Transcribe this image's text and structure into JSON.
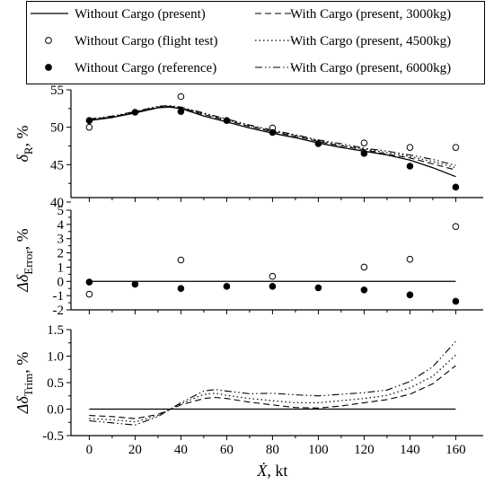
{
  "legend": {
    "placement": "top",
    "entries": [
      {
        "key": "without_cargo_present",
        "label": "Without Cargo (present)",
        "style": "solid-line"
      },
      {
        "key": "with_cargo_3000",
        "label": "With Cargo (present, 3000kg)",
        "style": "dashed-line"
      },
      {
        "key": "without_cargo_flight_test",
        "label": "Without Cargo (flight test)",
        "style": "open-circle"
      },
      {
        "key": "with_cargo_4500",
        "label": "With Cargo (present, 4500kg)",
        "style": "dotted-line"
      },
      {
        "key": "without_cargo_reference",
        "label": "Without Cargo (reference)",
        "style": "filled-circle"
      },
      {
        "key": "with_cargo_6000",
        "label": "With Cargo (present, 6000kg)",
        "style": "dashdot-line"
      }
    ]
  },
  "xaxis": {
    "label_symbol": "Ẋ",
    "label_unit": ", kt",
    "ticks": [
      "0",
      "20",
      "40",
      "60",
      "80",
      "100",
      "120",
      "140",
      "160"
    ],
    "range": [
      -8,
      172
    ]
  },
  "chart_data": [
    {
      "type": "line",
      "panel": "top",
      "ylabel_symbol": "δ",
      "ylabel_sub": "R",
      "ylabel_unit": ", %",
      "ylim": [
        40.6,
        55
      ],
      "yticks": [
        "40",
        "45",
        "50",
        "55"
      ],
      "series": [
        {
          "name": "Without Cargo (present)",
          "x": [
            0,
            10,
            20,
            30,
            35,
            40,
            50,
            60,
            70,
            80,
            90,
            100,
            110,
            120,
            130,
            140,
            150,
            160
          ],
          "y": [
            50.9,
            51.3,
            51.9,
            52.6,
            52.7,
            52.5,
            51.5,
            50.7,
            49.9,
            49.2,
            48.6,
            47.9,
            47.3,
            46.8,
            46.3,
            45.6,
            44.6,
            43.4
          ]
        },
        {
          "name": "With Cargo (present, 3000kg)",
          "x": [
            0,
            10,
            20,
            30,
            35,
            40,
            50,
            60,
            70,
            80,
            90,
            100,
            110,
            120,
            130,
            140,
            150,
            160
          ],
          "y": [
            51.0,
            51.4,
            52.0,
            52.7,
            52.8,
            52.6,
            51.7,
            50.9,
            50.1,
            49.4,
            48.8,
            48.1,
            47.5,
            47.0,
            46.4,
            45.9,
            45.1,
            44.3
          ]
        },
        {
          "name": "With Cargo (present, 4500kg)",
          "x": [
            0,
            10,
            20,
            30,
            35,
            40,
            50,
            60,
            70,
            80,
            90,
            100,
            110,
            120,
            130,
            140,
            150,
            160
          ],
          "y": [
            51.0,
            51.4,
            52.0,
            52.7,
            52.8,
            52.6,
            51.8,
            51.0,
            50.2,
            49.5,
            48.9,
            48.2,
            47.6,
            47.1,
            46.6,
            46.1,
            45.4,
            44.6
          ]
        },
        {
          "name": "With Cargo (present, 6000kg)",
          "x": [
            0,
            10,
            20,
            30,
            35,
            40,
            50,
            60,
            70,
            80,
            90,
            100,
            110,
            120,
            130,
            140,
            150,
            160
          ],
          "y": [
            51.1,
            51.5,
            52.1,
            52.8,
            52.9,
            52.7,
            51.9,
            51.1,
            50.3,
            49.6,
            49.0,
            48.3,
            47.8,
            47.2,
            46.8,
            46.3,
            45.7,
            44.9
          ]
        },
        {
          "name": "Without Cargo (flight test)",
          "marker": "open",
          "x": [
            0,
            40,
            80,
            120,
            140,
            160
          ],
          "y": [
            50.0,
            54.1,
            49.9,
            47.9,
            47.3,
            47.3
          ]
        },
        {
          "name": "Without Cargo (reference)",
          "marker": "filled",
          "x": [
            0,
            20,
            40,
            60,
            80,
            100,
            120,
            140,
            160
          ],
          "y": [
            50.9,
            52.0,
            52.1,
            50.9,
            49.3,
            47.8,
            46.5,
            44.8,
            42.0
          ]
        }
      ]
    },
    {
      "type": "scatter",
      "panel": "middle",
      "ylabel_symbol": "Δδ",
      "ylabel_sub": "Error",
      "ylabel_unit": ", %",
      "ylim": [
        -2,
        5
      ],
      "yticks": [
        "-2",
        "-1",
        "0",
        "1",
        "2",
        "3",
        "4",
        "5"
      ],
      "zero_line": true,
      "series": [
        {
          "name": "Without Cargo (flight test)",
          "marker": "open",
          "x": [
            0,
            40,
            80,
            120,
            140,
            160
          ],
          "y": [
            -0.9,
            1.5,
            0.35,
            1.0,
            1.55,
            3.85
          ]
        },
        {
          "name": "Without Cargo (reference)",
          "marker": "filled",
          "x": [
            0,
            20,
            40,
            60,
            80,
            100,
            120,
            140,
            160
          ],
          "y": [
            -0.05,
            -0.2,
            -0.5,
            -0.35,
            -0.35,
            -0.45,
            -0.6,
            -0.95,
            -1.4
          ]
        }
      ]
    },
    {
      "type": "line",
      "panel": "bottom",
      "ylabel_symbol": "Δδ",
      "ylabel_sub": "Trim",
      "ylabel_unit": ", %",
      "ylim": [
        -0.5,
        1.5
      ],
      "yticks": [
        "-0.5",
        "0.0",
        "0.5",
        "1.0",
        "1.5"
      ],
      "series": [
        {
          "name": "Without Cargo (present)",
          "x": [
            0,
            160
          ],
          "y": [
            0,
            0
          ]
        },
        {
          "name": "With Cargo (present, 3000kg)",
          "x": [
            0,
            10,
            20,
            30,
            40,
            50,
            55,
            60,
            70,
            80,
            90,
            100,
            110,
            120,
            130,
            140,
            150,
            160
          ],
          "y": [
            -0.12,
            -0.14,
            -0.18,
            -0.1,
            0.08,
            0.2,
            0.22,
            0.2,
            0.13,
            0.08,
            0.03,
            0.02,
            0.06,
            0.12,
            0.18,
            0.28,
            0.48,
            0.82
          ]
        },
        {
          "name": "With Cargo (present, 4500kg)",
          "x": [
            0,
            10,
            20,
            30,
            40,
            50,
            55,
            60,
            70,
            80,
            90,
            100,
            110,
            120,
            130,
            140,
            150,
            160
          ],
          "y": [
            -0.18,
            -0.2,
            -0.24,
            -0.12,
            0.1,
            0.28,
            0.3,
            0.26,
            0.2,
            0.16,
            0.12,
            0.12,
            0.16,
            0.2,
            0.26,
            0.4,
            0.62,
            1.02
          ]
        },
        {
          "name": "With Cargo (present, 6000kg)",
          "x": [
            0,
            10,
            20,
            30,
            40,
            50,
            55,
            60,
            70,
            80,
            90,
            100,
            110,
            120,
            130,
            140,
            150,
            160
          ],
          "y": [
            -0.22,
            -0.26,
            -0.3,
            -0.14,
            0.12,
            0.34,
            0.37,
            0.34,
            0.29,
            0.3,
            0.27,
            0.25,
            0.28,
            0.31,
            0.36,
            0.52,
            0.8,
            1.28
          ]
        }
      ]
    }
  ]
}
